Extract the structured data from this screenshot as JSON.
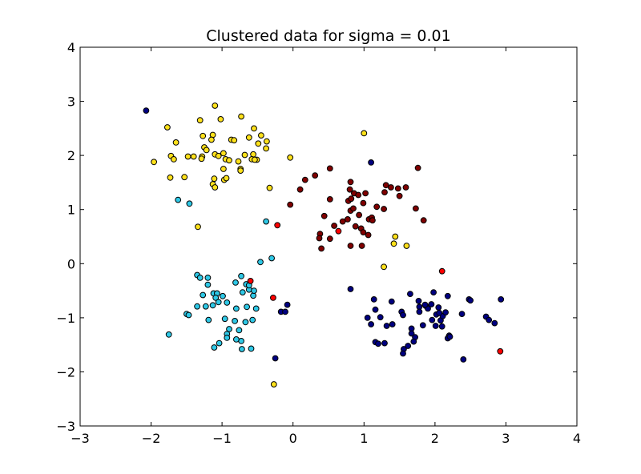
{
  "chart_data": {
    "type": "scatter",
    "title": "Clustered data for sigma = 0.01",
    "xlabel": "",
    "ylabel": "",
    "xlim": [
      -3,
      4
    ],
    "ylim": [
      -3,
      4
    ],
    "xticks": [
      "−3",
      "−2",
      "−1",
      "0",
      "1",
      "2",
      "3",
      "4"
    ],
    "yticks": [
      "−3",
      "−2",
      "−1",
      "0",
      "1",
      "2",
      "3",
      "4"
    ],
    "grid": false,
    "legend": "none",
    "colors": {
      "navy": "#000080",
      "cyan": "#2ec8e6",
      "red": "#ff0000",
      "darkred": "#800000",
      "yellow": "#ffe11a"
    },
    "series": [
      {
        "color": "navy",
        "points": [
          [
            -2.07,
            2.83
          ],
          [
            1.1,
            1.87
          ],
          [
            0.81,
            -0.47
          ],
          [
            1.14,
            -0.66
          ],
          [
            1.16,
            -0.85
          ],
          [
            1.1,
            -1.12
          ],
          [
            1.23,
            -0.99
          ],
          [
            1.39,
            -0.7
          ],
          [
            1.4,
            -1.12
          ],
          [
            1.16,
            -1.45
          ],
          [
            1.2,
            -1.48
          ],
          [
            1.29,
            -1.47
          ],
          [
            1.53,
            -0.89
          ],
          [
            1.55,
            -0.95
          ],
          [
            1.65,
            -0.56
          ],
          [
            1.67,
            -1.2
          ],
          [
            1.72,
            -1.36
          ],
          [
            1.7,
            -1.44
          ],
          [
            1.62,
            -1.52
          ],
          [
            1.56,
            -1.58
          ],
          [
            1.55,
            -1.66
          ],
          [
            1.77,
            -0.69
          ],
          [
            1.78,
            -0.8
          ],
          [
            1.78,
            -0.89
          ],
          [
            1.87,
            -0.78
          ],
          [
            1.9,
            -0.83
          ],
          [
            1.83,
            -1.14
          ],
          [
            1.95,
            -0.75
          ],
          [
            1.98,
            -0.53
          ],
          [
            1.96,
            -1.04
          ],
          [
            2.02,
            -0.94
          ],
          [
            2.05,
            -0.81
          ],
          [
            2.08,
            -1.05
          ],
          [
            2.11,
            -0.97
          ],
          [
            2.15,
            -0.9
          ],
          [
            2.1,
            -1.16
          ],
          [
            2.18,
            -0.6
          ],
          [
            2.2,
            -1.33
          ],
          [
            2.18,
            -1.38
          ],
          [
            2.21,
            -1.35
          ],
          [
            2.38,
            -0.93
          ],
          [
            2.48,
            -0.66
          ],
          [
            2.5,
            -0.68
          ],
          [
            2.72,
            -0.98
          ],
          [
            2.76,
            -1.04
          ],
          [
            2.84,
            -1.1
          ],
          [
            2.93,
            -0.66
          ],
          [
            2.4,
            -1.77
          ],
          [
            1.05,
            -1.0
          ],
          [
            -0.17,
            -0.89
          ],
          [
            -0.11,
            -0.89
          ],
          [
            -0.08,
            -0.76
          ],
          [
            -0.25,
            -1.75
          ],
          [
            1.32,
            -1.15
          ],
          [
            2.06,
            -0.91
          ],
          [
            1.67,
            -1.29
          ],
          [
            1.86,
            -0.76
          ],
          [
            2.01,
            -1.15
          ]
        ]
      },
      {
        "color": "cyan",
        "points": [
          [
            -1.62,
            1.18
          ],
          [
            -1.46,
            1.11
          ],
          [
            -0.38,
            0.78
          ],
          [
            -0.46,
            0.03
          ],
          [
            -0.3,
            0.1
          ],
          [
            -1.35,
            -0.21
          ],
          [
            -1.31,
            -0.26
          ],
          [
            -1.2,
            -0.26
          ],
          [
            -1.2,
            -0.39
          ],
          [
            -1.12,
            -0.55
          ],
          [
            -1.07,
            -0.55
          ],
          [
            -1.09,
            -0.63
          ],
          [
            -1.27,
            -0.58
          ],
          [
            -1.05,
            -0.71
          ],
          [
            -1.13,
            -0.77
          ],
          [
            -1.23,
            -0.79
          ],
          [
            -1.35,
            -0.79
          ],
          [
            -1.5,
            -0.93
          ],
          [
            -1.47,
            -0.95
          ],
          [
            -1.19,
            -1.04
          ],
          [
            -0.93,
            -0.72
          ],
          [
            -0.81,
            -0.35
          ],
          [
            -0.73,
            -0.23
          ],
          [
            -0.66,
            -0.38
          ],
          [
            -0.62,
            -0.48
          ],
          [
            -0.56,
            -0.59
          ],
          [
            -0.71,
            -0.53
          ],
          [
            -0.65,
            -0.8
          ],
          [
            -0.52,
            -0.83
          ],
          [
            -0.82,
            -1.06
          ],
          [
            -0.8,
            -0.83
          ],
          [
            -0.96,
            -1.02
          ],
          [
            -0.9,
            -1.21
          ],
          [
            -0.93,
            -1.3
          ],
          [
            -0.76,
            -1.23
          ],
          [
            -0.67,
            -1.08
          ],
          [
            -0.57,
            -1.04
          ],
          [
            -0.73,
            -1.43
          ],
          [
            -0.8,
            -1.4
          ],
          [
            -0.93,
            -1.37
          ],
          [
            -0.72,
            -1.58
          ],
          [
            -0.59,
            -1.57
          ],
          [
            -1.04,
            -1.47
          ],
          [
            -1.11,
            -1.55
          ],
          [
            -1.75,
            -1.31
          ],
          [
            -0.55,
            -0.5
          ],
          [
            -0.62,
            -0.4
          ],
          [
            -0.99,
            -0.6
          ]
        ]
      },
      {
        "color": "red",
        "points": [
          [
            -0.22,
            0.71
          ],
          [
            0.64,
            0.6
          ],
          [
            -0.6,
            -0.32
          ],
          [
            -0.28,
            -0.63
          ],
          [
            2.1,
            -0.14
          ],
          [
            2.92,
            -1.62
          ]
        ]
      },
      {
        "color": "darkred",
        "points": [
          [
            -0.04,
            1.09
          ],
          [
            0.1,
            1.37
          ],
          [
            0.17,
            1.55
          ],
          [
            0.31,
            1.63
          ],
          [
            0.52,
            1.76
          ],
          [
            0.52,
            1.19
          ],
          [
            0.44,
            0.88
          ],
          [
            0.58,
            0.7
          ],
          [
            0.38,
            0.55
          ],
          [
            0.37,
            0.47
          ],
          [
            0.52,
            0.46
          ],
          [
            0.4,
            0.28
          ],
          [
            0.7,
            0.78
          ],
          [
            0.77,
            0.82
          ],
          [
            0.81,
            0.98
          ],
          [
            0.85,
            1.02
          ],
          [
            0.78,
            1.16
          ],
          [
            0.82,
            1.2
          ],
          [
            0.8,
            1.37
          ],
          [
            0.81,
            1.51
          ],
          [
            0.86,
            1.3
          ],
          [
            0.92,
            1.27
          ],
          [
            0.99,
            1.12
          ],
          [
            1.02,
            1.3
          ],
          [
            0.93,
            0.9
          ],
          [
            0.88,
            0.69
          ],
          [
            0.96,
            0.65
          ],
          [
            0.99,
            0.58
          ],
          [
            0.81,
            0.33
          ],
          [
            0.97,
            0.33
          ],
          [
            1.07,
            0.82
          ],
          [
            1.11,
            0.85
          ],
          [
            1.12,
            0.8
          ],
          [
            1.18,
            1.05
          ],
          [
            1.28,
            1.01
          ],
          [
            1.31,
            1.45
          ],
          [
            1.29,
            1.32
          ],
          [
            1.38,
            1.41
          ],
          [
            1.5,
            1.25
          ],
          [
            1.48,
            1.39
          ],
          [
            1.59,
            1.41
          ],
          [
            1.73,
            1.02
          ],
          [
            1.76,
            1.77
          ],
          [
            1.84,
            0.8
          ],
          [
            1.06,
            0.53
          ]
        ]
      },
      {
        "color": "yellow",
        "points": [
          [
            -1.1,
            2.92
          ],
          [
            -0.73,
            2.72
          ],
          [
            -1.31,
            2.65
          ],
          [
            -1.02,
            2.67
          ],
          [
            -1.77,
            2.52
          ],
          [
            -0.55,
            2.5
          ],
          [
            -1.65,
            2.24
          ],
          [
            -1.13,
            2.38
          ],
          [
            -1.27,
            2.36
          ],
          [
            -0.62,
            2.33
          ],
          [
            -0.45,
            2.37
          ],
          [
            -0.37,
            2.26
          ],
          [
            -0.49,
            2.22
          ],
          [
            -1.15,
            2.29
          ],
          [
            -0.87,
            2.29
          ],
          [
            -1.25,
            2.15
          ],
          [
            -1.22,
            2.1
          ],
          [
            -1.1,
            2.02
          ],
          [
            -1.05,
            1.99
          ],
          [
            -1.72,
            1.99
          ],
          [
            -1.68,
            1.93
          ],
          [
            -1.4,
            1.98
          ],
          [
            -1.28,
            1.98
          ],
          [
            -0.98,
            2.04
          ],
          [
            -0.95,
            1.93
          ],
          [
            -0.77,
            1.89
          ],
          [
            -0.68,
            2.01
          ],
          [
            -0.56,
            2.02
          ],
          [
            -0.58,
            1.93
          ],
          [
            -0.51,
            1.92
          ],
          [
            -0.54,
            1.92
          ],
          [
            -0.38,
            2.13
          ],
          [
            -1.96,
            1.88
          ],
          [
            -1.29,
            1.94
          ],
          [
            -0.9,
            1.91
          ],
          [
            -0.74,
            1.75
          ],
          [
            -0.74,
            1.72
          ],
          [
            -0.98,
            1.75
          ],
          [
            -0.97,
            1.55
          ],
          [
            -0.94,
            1.58
          ],
          [
            -1.11,
            1.57
          ],
          [
            -1.13,
            1.47
          ],
          [
            -1.1,
            1.41
          ],
          [
            -1.73,
            1.59
          ],
          [
            -1.53,
            1.6
          ],
          [
            -0.33,
            1.4
          ],
          [
            -0.04,
            1.96
          ],
          [
            1.0,
            2.41
          ],
          [
            -1.34,
            0.68
          ],
          [
            1.44,
            0.5
          ],
          [
            1.42,
            0.37
          ],
          [
            1.6,
            0.33
          ],
          [
            1.28,
            -0.06
          ],
          [
            -0.27,
            -2.23
          ],
          [
            -0.83,
            2.28
          ],
          [
            -1.48,
            1.98
          ]
        ]
      }
    ]
  }
}
